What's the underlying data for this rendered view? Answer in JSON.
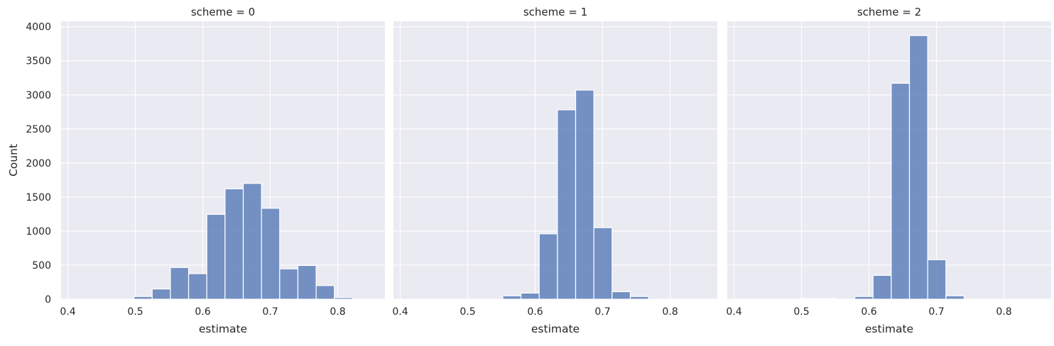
{
  "chart_data": {
    "type": "bar",
    "title": "",
    "ylabel": "Count",
    "xlabel": "estimate",
    "ylim": [
      0,
      4080
    ],
    "xlim": [
      0.39,
      0.87
    ],
    "x_ticks": [
      0.4,
      0.5,
      0.6,
      0.7,
      0.8
    ],
    "y_ticks": [
      0,
      500,
      1000,
      1500,
      2000,
      2500,
      3000,
      3500,
      4000
    ],
    "bin_width": 0.027,
    "grid": true,
    "facets": [
      {
        "title": "scheme = 0",
        "bins": [
          {
            "x": 0.498,
            "count": 40
          },
          {
            "x": 0.525,
            "count": 150
          },
          {
            "x": 0.552,
            "count": 465
          },
          {
            "x": 0.579,
            "count": 375
          },
          {
            "x": 0.606,
            "count": 1245
          },
          {
            "x": 0.633,
            "count": 1620
          },
          {
            "x": 0.66,
            "count": 1700
          },
          {
            "x": 0.687,
            "count": 1335
          },
          {
            "x": 0.714,
            "count": 445
          },
          {
            "x": 0.741,
            "count": 495
          },
          {
            "x": 0.768,
            "count": 200
          },
          {
            "x": 0.795,
            "count": 25
          }
        ]
      },
      {
        "title": "scheme = 1",
        "bins": [
          {
            "x": 0.552,
            "count": 50
          },
          {
            "x": 0.579,
            "count": 90
          },
          {
            "x": 0.606,
            "count": 960
          },
          {
            "x": 0.633,
            "count": 2780
          },
          {
            "x": 0.66,
            "count": 3070
          },
          {
            "x": 0.687,
            "count": 1050
          },
          {
            "x": 0.714,
            "count": 110
          },
          {
            "x": 0.741,
            "count": 40
          }
        ]
      },
      {
        "title": "scheme = 2",
        "bins": [
          {
            "x": 0.498,
            "count": 10
          },
          {
            "x": 0.525,
            "count": 10
          },
          {
            "x": 0.579,
            "count": 40
          },
          {
            "x": 0.606,
            "count": 350
          },
          {
            "x": 0.633,
            "count": 3170
          },
          {
            "x": 0.66,
            "count": 3870
          },
          {
            "x": 0.687,
            "count": 580
          },
          {
            "x": 0.714,
            "count": 50
          }
        ]
      }
    ]
  }
}
